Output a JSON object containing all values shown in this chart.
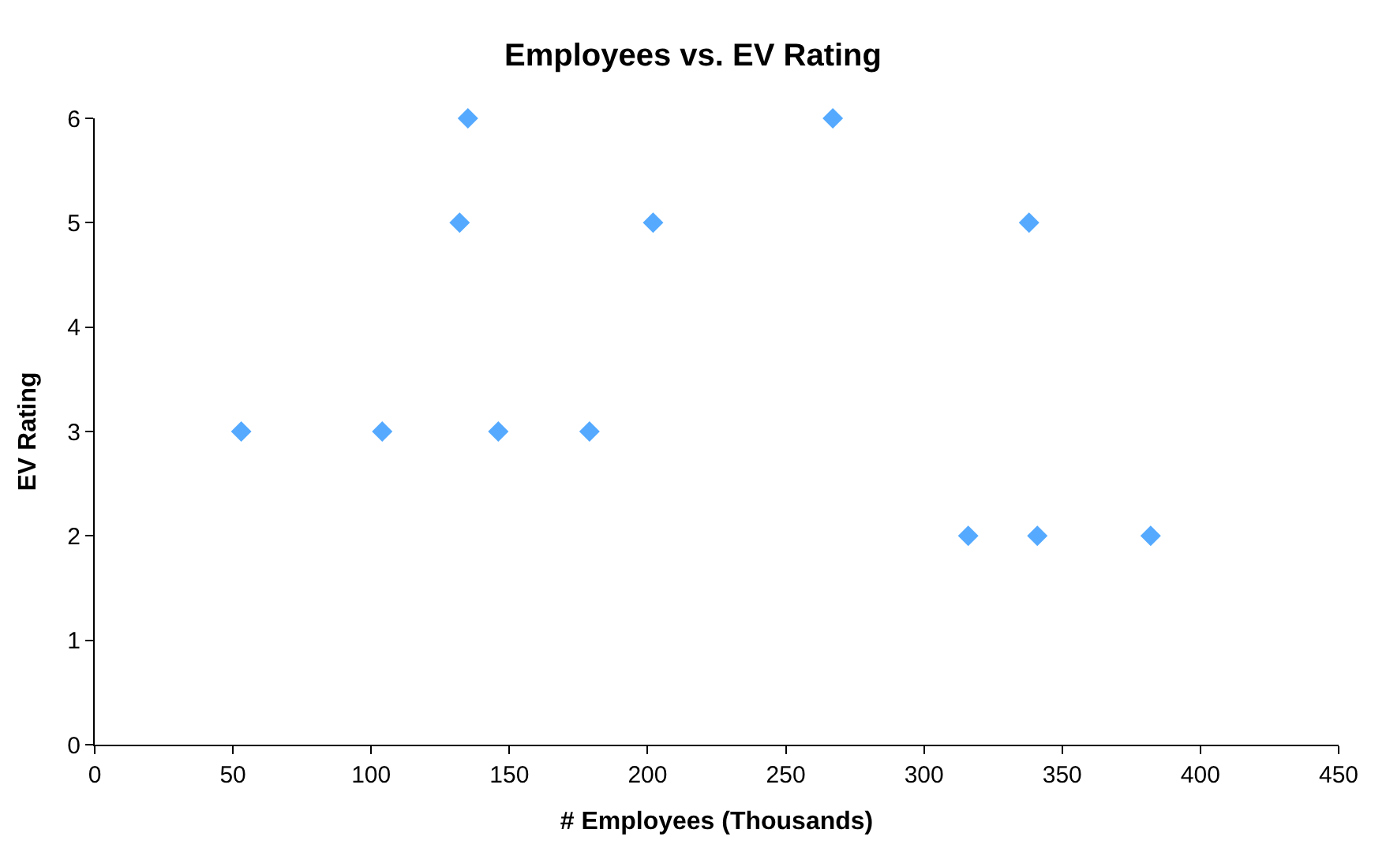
{
  "chart_data": {
    "type": "scatter",
    "title": "Employees vs. EV Rating",
    "xlabel": "# Employees (Thousands)",
    "ylabel": "EV Rating",
    "x": [
      53,
      104,
      132,
      135,
      146,
      179,
      202,
      267,
      316,
      338,
      341,
      382
    ],
    "series": [
      {
        "color": "#55aaff",
        "values": [
          3,
          3,
          5,
          6,
          3,
          3,
          5,
          6,
          2,
          5,
          2,
          2
        ]
      }
    ],
    "xlim": [
      0,
      450
    ],
    "xticks": [
      0,
      50,
      100,
      150,
      200,
      250,
      300,
      350,
      400,
      450
    ],
    "ylim": [
      0,
      6
    ],
    "yticks": [
      0,
      1,
      2,
      3,
      4,
      5,
      6
    ],
    "marker": "diamond"
  }
}
